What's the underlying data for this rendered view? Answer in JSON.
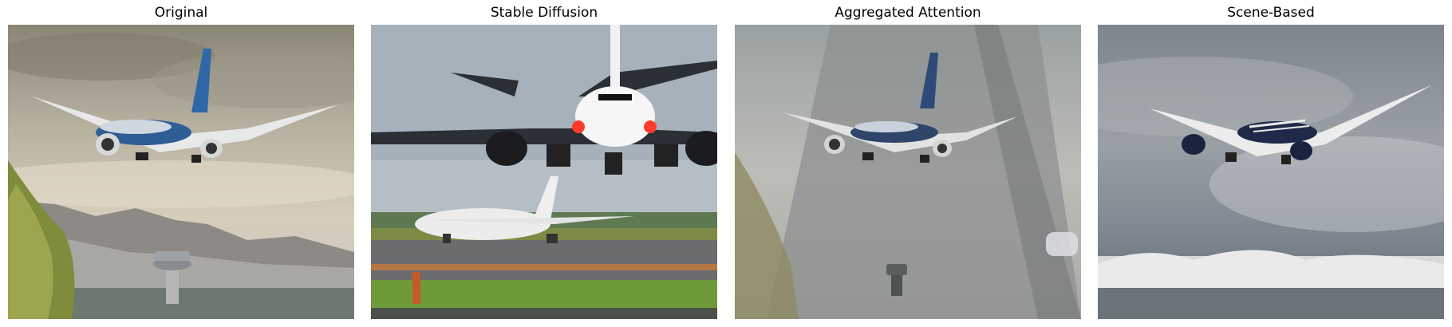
{
  "figure": {
    "panels": [
      {
        "title": "Original",
        "image": "airliner landing over mountains with control tower"
      },
      {
        "title": "Stable Diffusion",
        "image": "front view of airliner over runway with second plane"
      },
      {
        "title": "Aggregated Attention",
        "image": "airliner over blurred runway"
      },
      {
        "title": "Scene-Based",
        "image": "airliner flying above cloudy sky"
      }
    ]
  }
}
